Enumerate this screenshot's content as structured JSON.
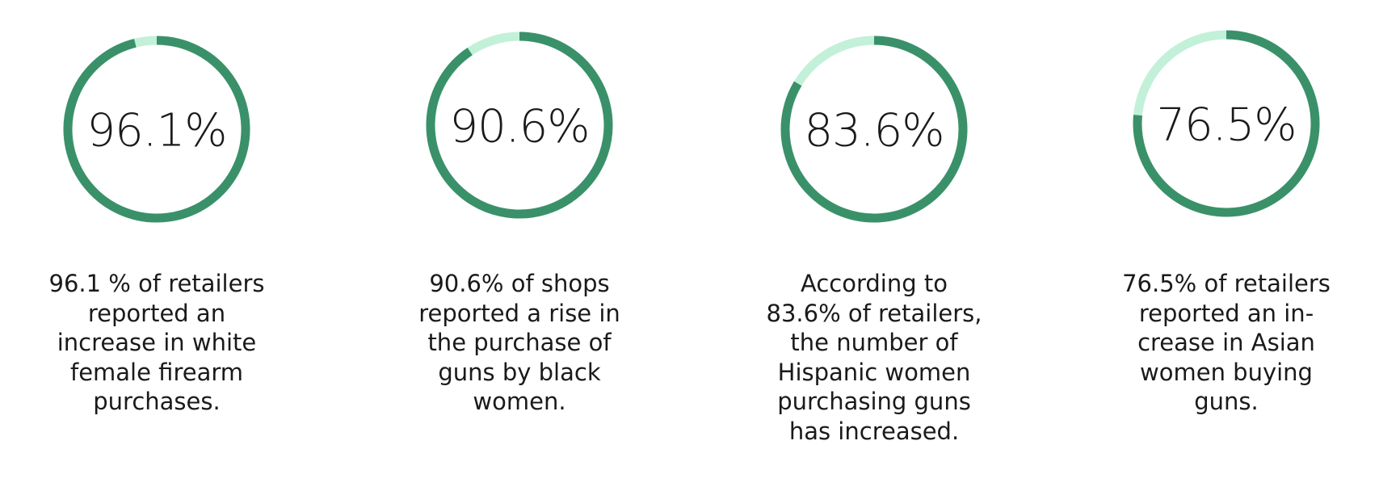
{
  "colors": {
    "value": "#3a9169",
    "track": "#c3f0d9",
    "text": "#1a1a1a"
  },
  "chart_data": {
    "type": "pie",
    "style": "donut-ring",
    "items": [
      {
        "value": 96.1,
        "label": "96.1%",
        "caption_lines": [
          "96.1 % of retailers",
          "reported an",
          "increase in white",
          "female firearm",
          "purchases."
        ]
      },
      {
        "value": 90.6,
        "label": "90.6%",
        "caption_lines": [
          "90.6% of shops",
          "reported a rise in",
          "the purchase of",
          "guns by black",
          "women."
        ]
      },
      {
        "value": 83.6,
        "label": "83.6%",
        "caption_lines": [
          "According to",
          "83.6% of retailers,",
          "the number of",
          "Hispanic women",
          "purchasing guns",
          "has increased."
        ]
      },
      {
        "value": 76.5,
        "label": "76.5%",
        "caption_lines": [
          "76.5% of retailers",
          "reported an in-",
          "crease in Asian",
          "women buying",
          "guns."
        ]
      }
    ]
  }
}
